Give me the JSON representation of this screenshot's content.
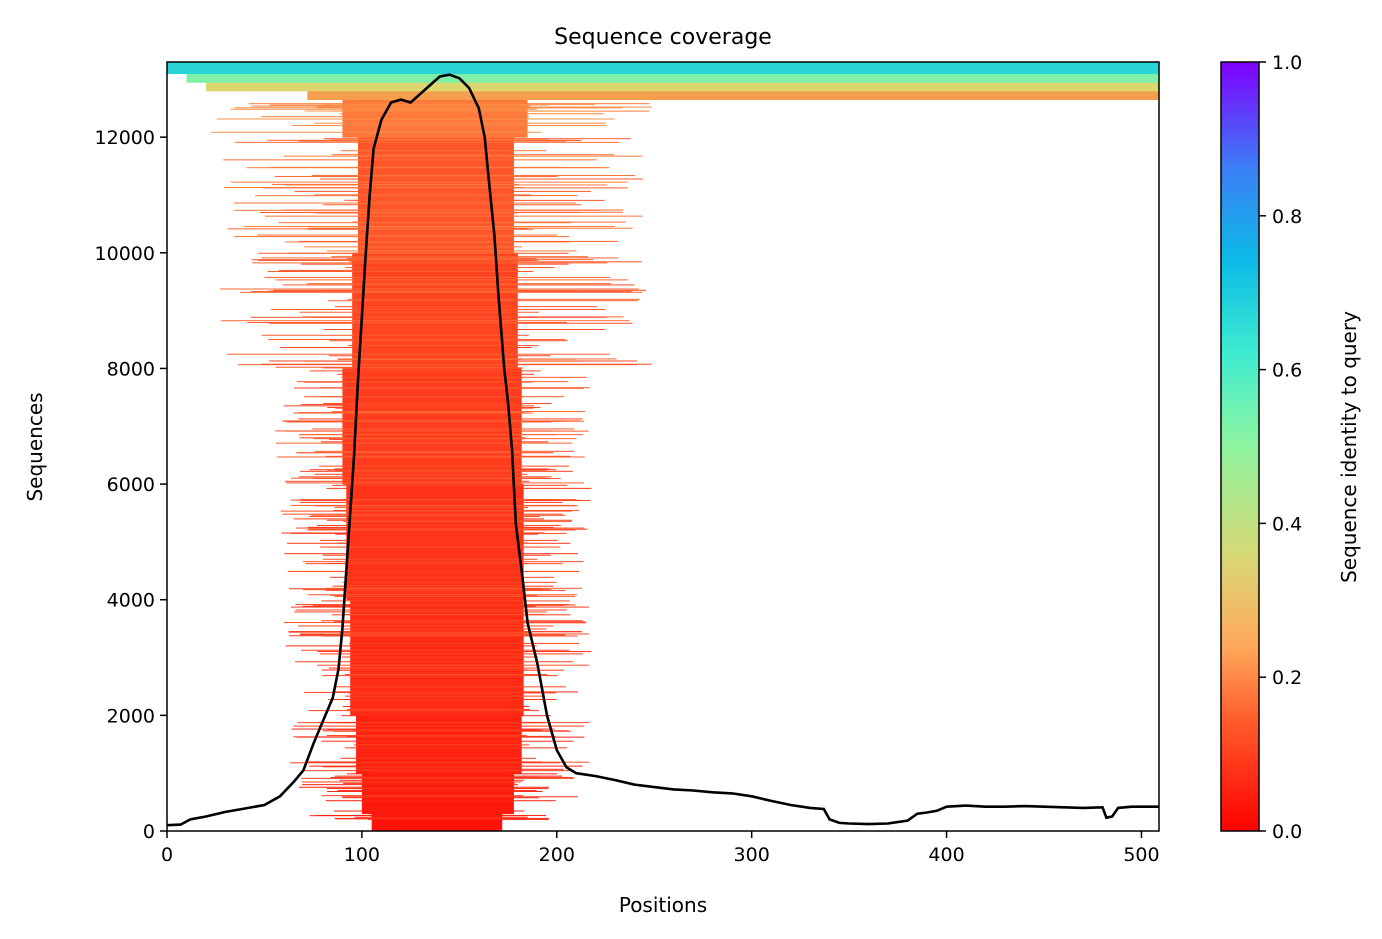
{
  "chart_data": {
    "type": "heatmap",
    "title": "Sequence coverage",
    "xlabel": "Positions",
    "ylabel": "Sequences",
    "xlim": [
      0,
      509
    ],
    "ylim": [
      0,
      13300
    ],
    "x_ticks": [
      0,
      100,
      200,
      300,
      400,
      500
    ],
    "y_ticks": [
      0,
      2000,
      4000,
      6000,
      8000,
      10000,
      12000
    ],
    "colorbar": {
      "label": "Sequence identity to query",
      "range": [
        0,
        1
      ],
      "ticks": [
        "0.0",
        "0.2",
        "0.4",
        "0.6",
        "0.8",
        "1.0"
      ],
      "colormap": "rainbow_r",
      "stops": [
        "#ff0000",
        "#ff7a3c",
        "#e5d46a",
        "#8ff5a0",
        "#2ad6d6",
        "#16b2ea",
        "#3a80f5",
        "#8000ff"
      ]
    },
    "coverage_line": {
      "color": "#000000",
      "points": [
        [
          0,
          100
        ],
        [
          7,
          110
        ],
        [
          12,
          200
        ],
        [
          20,
          250
        ],
        [
          30,
          330
        ],
        [
          40,
          390
        ],
        [
          50,
          450
        ],
        [
          58,
          600
        ],
        [
          65,
          850
        ],
        [
          70,
          1050
        ],
        [
          75,
          1500
        ],
        [
          80,
          1900
        ],
        [
          85,
          2300
        ],
        [
          88,
          2800
        ],
        [
          90,
          3500
        ],
        [
          92,
          4500
        ],
        [
          94,
          5500
        ],
        [
          96,
          6500
        ],
        [
          98,
          7800
        ],
        [
          100,
          8900
        ],
        [
          102,
          10000
        ],
        [
          104,
          11000
        ],
        [
          106,
          11800
        ],
        [
          110,
          12300
        ],
        [
          115,
          12600
        ],
        [
          120,
          12650
        ],
        [
          125,
          12600
        ],
        [
          130,
          12750
        ],
        [
          135,
          12900
        ],
        [
          140,
          13050
        ],
        [
          145,
          13080
        ],
        [
          150,
          13020
        ],
        [
          155,
          12850
        ],
        [
          160,
          12500
        ],
        [
          163,
          12000
        ],
        [
          165,
          11300
        ],
        [
          168,
          10300
        ],
        [
          170,
          9300
        ],
        [
          173,
          8000
        ],
        [
          175,
          7400
        ],
        [
          177,
          6600
        ],
        [
          179,
          5300
        ],
        [
          182,
          4500
        ],
        [
          185,
          3600
        ],
        [
          190,
          2900
        ],
        [
          195,
          2000
        ],
        [
          200,
          1400
        ],
        [
          205,
          1100
        ],
        [
          210,
          1000
        ],
        [
          220,
          950
        ],
        [
          230,
          880
        ],
        [
          240,
          800
        ],
        [
          250,
          760
        ],
        [
          260,
          720
        ],
        [
          270,
          700
        ],
        [
          280,
          670
        ],
        [
          290,
          650
        ],
        [
          300,
          600
        ],
        [
          310,
          520
        ],
        [
          320,
          450
        ],
        [
          330,
          400
        ],
        [
          337,
          380
        ],
        [
          340,
          200
        ],
        [
          345,
          140
        ],
        [
          350,
          130
        ],
        [
          360,
          120
        ],
        [
          370,
          130
        ],
        [
          380,
          180
        ],
        [
          385,
          300
        ],
        [
          390,
          320
        ],
        [
          395,
          350
        ],
        [
          400,
          420
        ],
        [
          410,
          440
        ],
        [
          420,
          420
        ],
        [
          430,
          420
        ],
        [
          440,
          430
        ],
        [
          450,
          420
        ],
        [
          460,
          410
        ],
        [
          470,
          400
        ],
        [
          480,
          410
        ],
        [
          482,
          230
        ],
        [
          485,
          250
        ],
        [
          488,
          400
        ],
        [
          495,
          420
        ],
        [
          509,
          420
        ]
      ]
    },
    "coverage_rows": {
      "description_note": "",
      "bands": [
        {
          "seq_from": 0,
          "seq_to": 300,
          "x_from": 105,
          "x_to": 172,
          "identity": 0.02
        },
        {
          "seq_from": 300,
          "seq_to": 1000,
          "x_from": 100,
          "x_to": 178,
          "identity": 0.03
        },
        {
          "seq_from": 1000,
          "seq_to": 2000,
          "x_from": 97,
          "x_to": 182,
          "identity": 0.04
        },
        {
          "seq_from": 2000,
          "seq_to": 4000,
          "x_from": 94,
          "x_to": 183,
          "identity": 0.05
        },
        {
          "seq_from": 4000,
          "seq_to": 6000,
          "x_from": 92,
          "x_to": 183,
          "identity": 0.06
        },
        {
          "seq_from": 6000,
          "seq_to": 8000,
          "x_from": 90,
          "x_to": 182,
          "identity": 0.07
        },
        {
          "seq_from": 8000,
          "seq_to": 10000,
          "x_from": 95,
          "x_to": 180,
          "identity": 0.08
        },
        {
          "seq_from": 10000,
          "seq_to": 12000,
          "x_from": 98,
          "x_to": 178,
          "identity": 0.1
        },
        {
          "seq_from": 12000,
          "seq_to": 12650,
          "x_from": 90,
          "x_to": 185,
          "identity": 0.14
        },
        {
          "seq_from": 12650,
          "seq_to": 12800,
          "x_from": 72,
          "x_to": 509,
          "identity": 0.2
        },
        {
          "seq_from": 12800,
          "seq_to": 12950,
          "x_from": 20,
          "x_to": 509,
          "identity": 0.3
        },
        {
          "seq_from": 12950,
          "seq_to": 13100,
          "x_from": 10,
          "x_to": 509,
          "identity": 0.45
        },
        {
          "seq_from": 13100,
          "seq_to": 13300,
          "x_from": 0,
          "x_to": 509,
          "identity": 0.58
        }
      ]
    }
  }
}
